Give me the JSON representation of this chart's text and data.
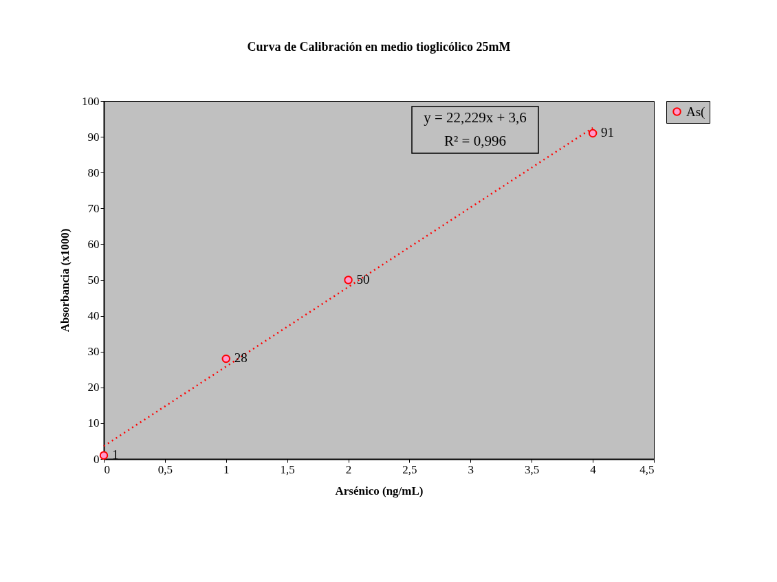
{
  "chart_data": {
    "type": "scatter",
    "title": "Curva de Calibración en medio tioglicólico 25mM",
    "xlabel": "Arsénico (ng/mL)",
    "ylabel": "Absorbancia (x1000)",
    "series": [
      {
        "name": "As(",
        "marker": "circle",
        "color": "#ff99cc",
        "x": [
          0,
          1,
          2,
          4
        ],
        "values": [
          1,
          28,
          50,
          91
        ],
        "value_labels": [
          "1",
          "28",
          "50",
          "91"
        ]
      },
      {
        "type": "line",
        "color": "#ff0000",
        "line_style": "dotted",
        "x": [
          0,
          4
        ],
        "values": [
          3.6,
          92.5
        ]
      }
    ],
    "annotations": [
      "y = 22,229x + 3,6",
      "R² = 0,996"
    ],
    "xlim": [
      0,
      4.5
    ],
    "xticks": [
      0,
      {
        "value": 0.5,
        "label": "0,5"
      },
      1,
      {
        "value": 1.5,
        "label": "1,5"
      },
      2,
      {
        "value": 2.5,
        "label": "2,5"
      },
      3,
      {
        "value": 3.5,
        "label": "3,5"
      },
      4,
      {
        "value": 4.5,
        "label": "4,5"
      }
    ],
    "ylim": [
      0,
      100
    ],
    "yticks": [
      0,
      10,
      20,
      30,
      40,
      50,
      60,
      70,
      80,
      90,
      100
    ],
    "grid": false,
    "legend": "right"
  }
}
